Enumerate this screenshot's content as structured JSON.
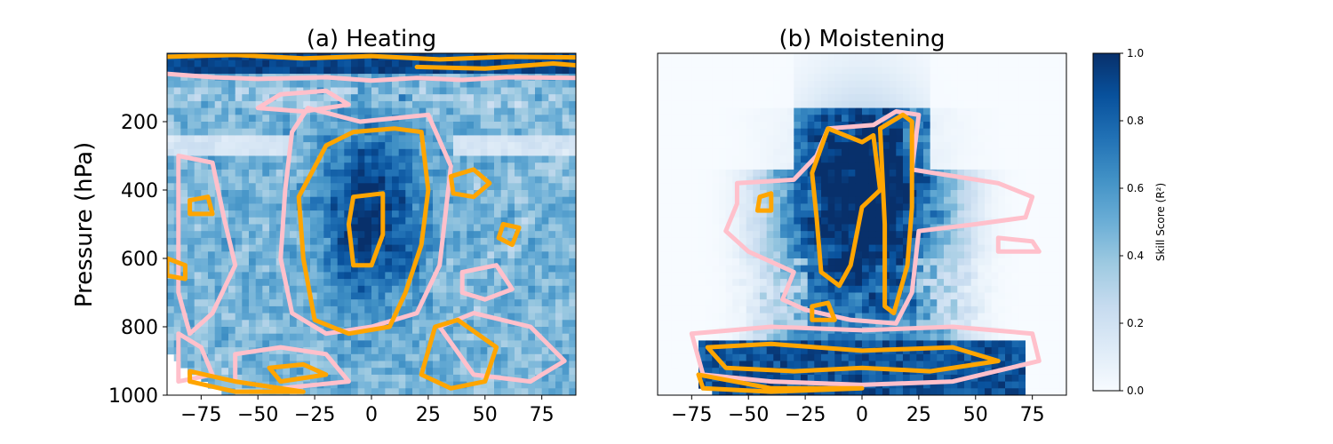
{
  "figure": {
    "ylabel": "Pressure (hPa)",
    "colorbar": {
      "label": "Skill Score (R²)",
      "range": [
        0.0,
        1.0
      ],
      "ticks": [
        "0.0",
        "0.2",
        "0.4",
        "0.6",
        "0.8",
        "1.0"
      ],
      "colormap": "Blues",
      "colors": [
        "#f7fbff",
        "#deebf7",
        "#c6dbef",
        "#9ecae1",
        "#6baed6",
        "#4292c6",
        "#2171b5",
        "#08519c",
        "#08306b"
      ]
    },
    "contour_colors": {
      "low": "#ffc0cb",
      "high": "#ffa500"
    }
  },
  "chart_data": [
    {
      "type": "heatmap",
      "title": "(a) Heating",
      "xlabel": "",
      "ylabel": "Pressure (hPa)",
      "xlim": [
        -90,
        90
      ],
      "ylim": [
        1000,
        0
      ],
      "xticks": [
        -75,
        -50,
        -25,
        0,
        25,
        50,
        75
      ],
      "yticks": [
        200,
        400,
        600,
        800,
        1000
      ],
      "contour_levels": [
        0.5,
        0.9
      ],
      "grid": false
    },
    {
      "type": "heatmap",
      "title": "(b) Moistening",
      "xlabel": "",
      "ylabel": "",
      "xlim": [
        -90,
        90
      ],
      "ylim": [
        1000,
        0
      ],
      "xticks": [
        -75,
        -50,
        -25,
        0,
        25,
        50,
        75
      ],
      "yticks": [],
      "contour_levels": [
        0.5,
        0.9
      ],
      "grid": false
    }
  ]
}
